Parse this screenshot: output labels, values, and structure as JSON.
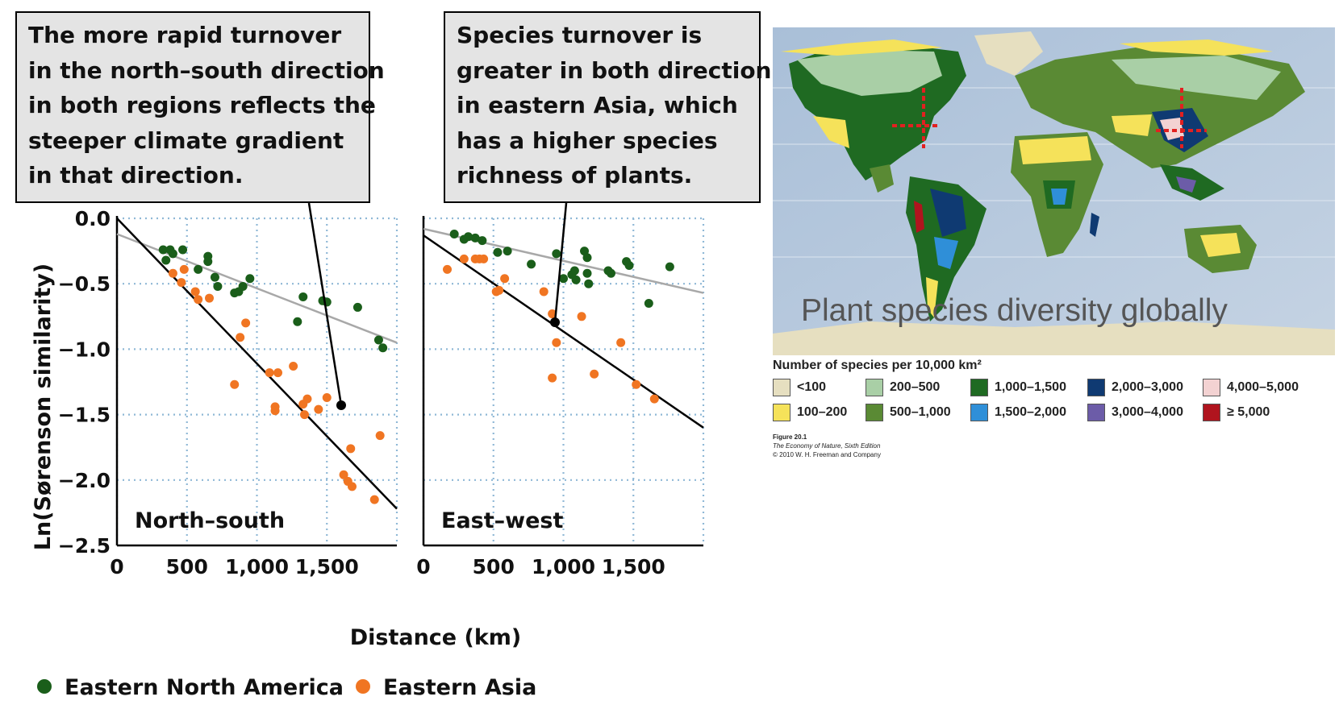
{
  "callouts": {
    "left": [
      "The more rapid turnover",
      "in the north–south direction",
      "in both regions reflects the",
      "steeper climate gradient",
      "in that direction."
    ],
    "right": [
      "Species turnover is",
      "greater in both directions",
      "in eastern Asia, which",
      "has a higher species",
      "richness of plants."
    ]
  },
  "chart_data": [
    {
      "type": "scatter",
      "title": "North–south",
      "xlabel": "Distance (km)",
      "ylabel": "Ln(Sørenson similarity)",
      "xlim": [
        0,
        2000
      ],
      "ylim": [
        -2.5,
        0.0
      ],
      "xticks": [
        "0",
        "500",
        "1,000",
        "1,500"
      ],
      "yticks": [
        "0.0",
        "−0.5",
        "−1.0",
        "−1.5",
        "−2.0",
        "−2.5"
      ],
      "grid": true,
      "series": [
        {
          "name": "Eastern North America",
          "color": "#1a5e1a",
          "points": [
            [
              330,
              -0.24
            ],
            [
              350,
              -0.32
            ],
            [
              380,
              -0.24
            ],
            [
              400,
              -0.27
            ],
            [
              470,
              -0.24
            ],
            [
              580,
              -0.39
            ],
            [
              650,
              -0.29
            ],
            [
              650,
              -0.33
            ],
            [
              700,
              -0.45
            ],
            [
              720,
              -0.52
            ],
            [
              840,
              -0.57
            ],
            [
              870,
              -0.56
            ],
            [
              900,
              -0.52
            ],
            [
              950,
              -0.46
            ],
            [
              1290,
              -0.79
            ],
            [
              1330,
              -0.6
            ],
            [
              1470,
              -0.63
            ],
            [
              1500,
              -0.64
            ],
            [
              1720,
              -0.68
            ],
            [
              1870,
              -0.93
            ],
            [
              1900,
              -0.99
            ]
          ],
          "trend": [
            [
              0,
              -0.12
            ],
            [
              2000,
              -0.95
            ]
          ]
        },
        {
          "name": "Eastern Asia",
          "color": "#f07522",
          "points": [
            [
              400,
              -0.42
            ],
            [
              460,
              -0.49
            ],
            [
              480,
              -0.39
            ],
            [
              560,
              -0.56
            ],
            [
              580,
              -0.62
            ],
            [
              660,
              -0.61
            ],
            [
              840,
              -1.27
            ],
            [
              880,
              -0.91
            ],
            [
              920,
              -0.8
            ],
            [
              1090,
              -1.18
            ],
            [
              1130,
              -1.44
            ],
            [
              1130,
              -1.47
            ],
            [
              1150,
              -1.18
            ],
            [
              1260,
              -1.13
            ],
            [
              1330,
              -1.42
            ],
            [
              1340,
              -1.5
            ],
            [
              1360,
              -1.38
            ],
            [
              1440,
              -1.46
            ],
            [
              1500,
              -1.37
            ],
            [
              1670,
              -1.76
            ],
            [
              1620,
              -1.96
            ],
            [
              1650,
              -2.01
            ],
            [
              1680,
              -2.05
            ],
            [
              1840,
              -2.15
            ],
            [
              1880,
              -1.66
            ]
          ],
          "trend": [
            [
              0,
              0.0
            ],
            [
              2000,
              -2.22
            ]
          ]
        }
      ],
      "annotation_point": [
        1470,
        -1.24
      ]
    },
    {
      "type": "scatter",
      "title": "East–west",
      "xlabel": "Distance (km)",
      "ylabel": "Ln(Sørenson similarity)",
      "xlim": [
        0,
        2000
      ],
      "ylim": [
        -2.5,
        0.0
      ],
      "xticks": [
        "0",
        "500",
        "1,000",
        "1,500"
      ],
      "yticks": [
        "0.0",
        "−0.5",
        "−1.0",
        "−1.5",
        "−2.0",
        "−2.5"
      ],
      "grid": true,
      "series": [
        {
          "name": "Eastern North America",
          "color": "#1a5e1a",
          "points": [
            [
              220,
              -0.12
            ],
            [
              290,
              -0.16
            ],
            [
              320,
              -0.14
            ],
            [
              370,
              -0.15
            ],
            [
              420,
              -0.17
            ],
            [
              530,
              -0.26
            ],
            [
              600,
              -0.25
            ],
            [
              770,
              -0.35
            ],
            [
              950,
              -0.27
            ],
            [
              1000,
              -0.46
            ],
            [
              1060,
              -0.43
            ],
            [
              1080,
              -0.4
            ],
            [
              1090,
              -0.47
            ],
            [
              1150,
              -0.25
            ],
            [
              1170,
              -0.3
            ],
            [
              1170,
              -0.42
            ],
            [
              1180,
              -0.5
            ],
            [
              1320,
              -0.4
            ],
            [
              1340,
              -0.42
            ],
            [
              1450,
              -0.33
            ],
            [
              1470,
              -0.36
            ],
            [
              1610,
              -0.65
            ],
            [
              1760,
              -0.37
            ]
          ],
          "trend": [
            [
              0,
              -0.08
            ],
            [
              2000,
              -0.57
            ]
          ]
        },
        {
          "name": "Eastern Asia",
          "color": "#f07522",
          "points": [
            [
              170,
              -0.39
            ],
            [
              290,
              -0.31
            ],
            [
              370,
              -0.31
            ],
            [
              400,
              -0.31
            ],
            [
              430,
              -0.31
            ],
            [
              520,
              -0.56
            ],
            [
              540,
              -0.55
            ],
            [
              580,
              -0.46
            ],
            [
              860,
              -0.56
            ],
            [
              920,
              -1.22
            ],
            [
              920,
              -0.73
            ],
            [
              950,
              -0.95
            ],
            [
              1130,
              -0.75
            ],
            [
              1220,
              -1.19
            ],
            [
              1410,
              -0.95
            ],
            [
              1520,
              -1.27
            ],
            [
              1650,
              -1.38
            ]
          ],
          "trend": [
            [
              0,
              -0.13
            ],
            [
              2000,
              -1.6
            ]
          ]
        }
      ],
      "annotation_point": [
        700,
        -0.65
      ]
    }
  ],
  "legend": [
    {
      "label": "Eastern North America",
      "color": "#1a5e1a"
    },
    {
      "label": "Eastern Asia",
      "color": "#f07522"
    }
  ],
  "map": {
    "title": "Plant species diversity globally",
    "legend_title": "Number of species per 10,000 km²",
    "classes": [
      {
        "label": "<100",
        "color": "#e6dfc0"
      },
      {
        "label": "100–200",
        "color": "#f5e25a"
      },
      {
        "label": "200–500",
        "color": "#a9cfa6"
      },
      {
        "label": "500–1,000",
        "color": "#5a8a34"
      },
      {
        "label": "1,000–1,500",
        "color": "#1f6a22"
      },
      {
        "label": "1,500–2,000",
        "color": "#2f8fd8"
      },
      {
        "label": "2,000–3,000",
        "color": "#0f3a72"
      },
      {
        "label": "3,000–4,000",
        "color": "#6c5ca8"
      },
      {
        "label": "4,000–5,000",
        "color": "#f3d2d2"
      },
      {
        "label": "≥ 5,000",
        "color": "#b0141e"
      }
    ],
    "credit": [
      "Figure 20.1",
      "The Economy of Nature, Sixth Edition",
      "© 2010 W. H. Freeman and Company"
    ]
  }
}
